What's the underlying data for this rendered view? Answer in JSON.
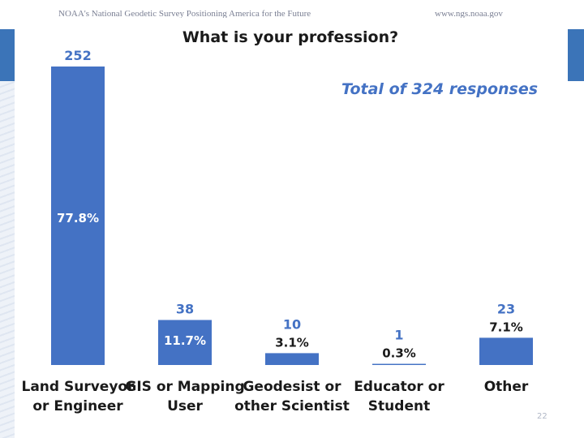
{
  "header": {
    "left_text": "NOAA's National Geodetic Survey Positioning America for the Future",
    "right_text": "www.ngs.noaa.gov",
    "page_number": "22"
  },
  "colors": {
    "bar": "#4472c4",
    "band": "#3b74b8"
  },
  "chart_data": {
    "type": "bar",
    "title": "What is your profession?",
    "annotation": "Total of 324 responses",
    "categories": [
      [
        "Land Surveyor",
        "or Engineer"
      ],
      [
        "GIS or Mapping",
        "User"
      ],
      [
        "Geodesist or",
        "other Scientist"
      ],
      [
        "Educator or",
        "Student"
      ],
      [
        "Other"
      ]
    ],
    "values": [
      252,
      38,
      10,
      1,
      23
    ],
    "value_labels": [
      "252",
      "38",
      "10",
      "1",
      "23"
    ],
    "percent_labels": [
      "77.8%",
      "11.7%",
      "3.1%",
      "0.3%",
      "7.1%"
    ],
    "ylim": [
      0,
      252
    ]
  }
}
